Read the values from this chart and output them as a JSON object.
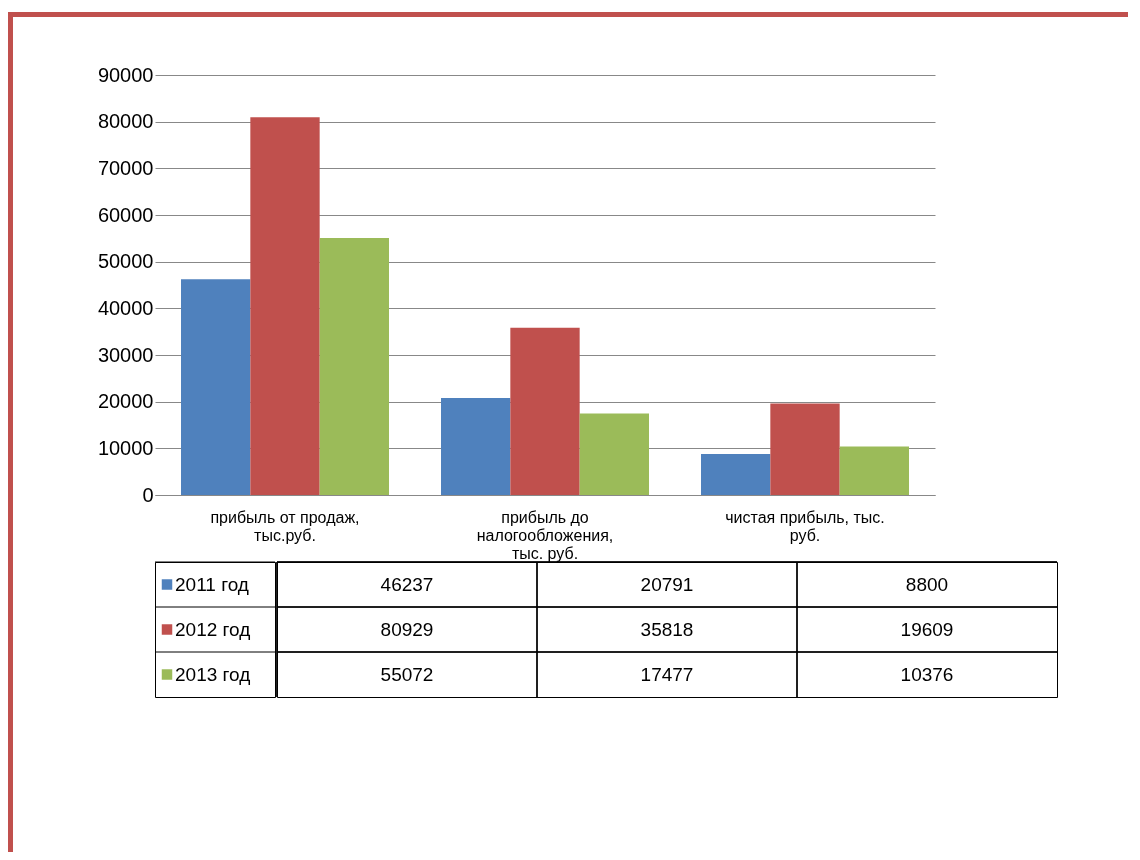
{
  "chart_data": {
    "type": "bar",
    "categories": [
      "прибыль от продаж, тыс.руб.",
      "прибыль до налогообложения, тыс. руб.",
      "чистая прибыль, тыс. руб."
    ],
    "series": [
      {
        "name": "2011 год",
        "color": "#4f81bd",
        "values": [
          46237,
          20791,
          8800
        ]
      },
      {
        "name": "2012 год",
        "color": "#c0504d",
        "values": [
          80929,
          35818,
          19609
        ]
      },
      {
        "name": "2013 год",
        "color": "#9bbb59",
        "values": [
          55072,
          17477,
          10376
        ]
      }
    ],
    "ylim": [
      0,
      90000
    ],
    "yticks": [
      0,
      10000,
      20000,
      30000,
      40000,
      50000,
      60000,
      70000,
      80000,
      90000
    ],
    "grid": "y",
    "legend": "bottom",
    "data_labels": true
  }
}
